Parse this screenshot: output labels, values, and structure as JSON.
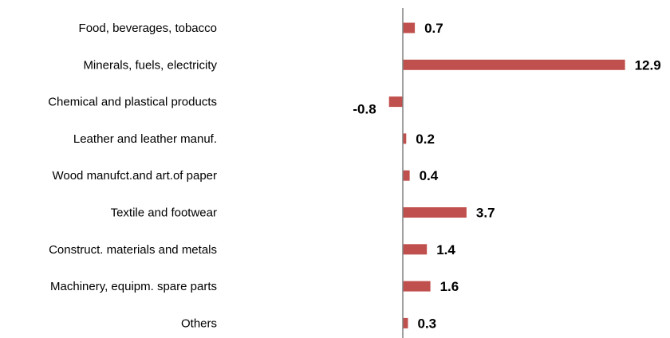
{
  "chart_data": {
    "type": "bar",
    "orientation": "horizontal",
    "categories": [
      "Food, beverages, tobacco",
      "Minerals, fuels, electricity",
      "Chemical and plastical products",
      "Leather and leather manuf.",
      "Wood manufct.and art.of paper",
      "Textile and footwear",
      "Construct. materials and metals",
      "Machinery, equipm. spare parts",
      "Others"
    ],
    "values": [
      0.7,
      12.9,
      -0.8,
      0.2,
      0.4,
      3.7,
      1.4,
      1.6,
      0.3
    ],
    "value_labels": [
      "0.7",
      "12.9",
      "-0.8",
      "0.2",
      "0.4",
      "3.7",
      "1.4",
      "1.6",
      "0.3"
    ],
    "title": "",
    "xlabel": "",
    "ylabel": "",
    "grid": false,
    "legend": "none",
    "bar_color": "#c0504d",
    "axis_color": "#808080"
  }
}
